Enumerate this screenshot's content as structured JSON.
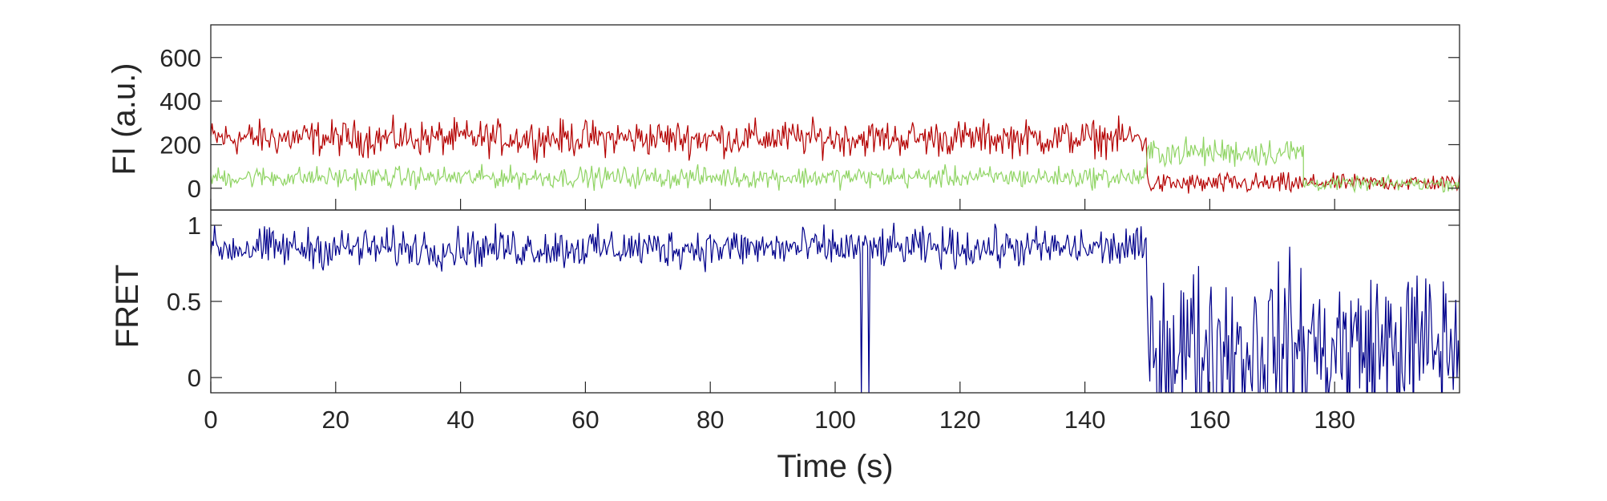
{
  "chart_data": [
    {
      "type": "line",
      "panel": "top",
      "ylabel": "FI (a.u.)",
      "xlabel": "",
      "xlim": [
        0,
        200
      ],
      "ylim": [
        -100,
        750
      ],
      "yticks": [
        0,
        200,
        400,
        600
      ],
      "ytick_labels": [
        "0",
        "200",
        "400",
        "600"
      ],
      "grid": false,
      "series": [
        {
          "color": "#b40000",
          "segments": [
            {
              "x": [
                0,
                150
              ],
              "mean": 230,
              "noise": 75
            },
            {
              "x": [
                150,
                175
              ],
              "mean": 20,
              "noise": 45
            },
            {
              "x": [
                175,
                200
              ],
              "mean": 25,
              "noise": 35
            }
          ]
        },
        {
          "color": "#8fd463",
          "segments": [
            {
              "x": [
                0,
                150
              ],
              "mean": 50,
              "noise": 45
            },
            {
              "x": [
                150,
                175
              ],
              "mean": 165,
              "noise": 60
            },
            {
              "x": [
                175,
                200
              ],
              "mean": 20,
              "noise": 30
            }
          ]
        }
      ]
    },
    {
      "type": "line",
      "panel": "bottom",
      "ylabel": "FRET",
      "xlabel": "Time (s)",
      "xlim": [
        0,
        200
      ],
      "ylim": [
        -0.1,
        1.1
      ],
      "yticks": [
        0,
        0.5,
        1
      ],
      "ytick_labels": [
        "0",
        "0.5",
        "1"
      ],
      "xticks": [
        0,
        20,
        40,
        60,
        80,
        100,
        120,
        140,
        160,
        180
      ],
      "xtick_labels": [
        "0",
        "20",
        "40",
        "60",
        "80",
        "100",
        "120",
        "140",
        "160",
        "180"
      ],
      "grid": false,
      "series": [
        {
          "color": "#00008b",
          "segments": [
            {
              "x": [
                0,
                150
              ],
              "mean": 0.85,
              "noise": 0.12
            },
            {
              "x": [
                150,
                200
              ],
              "mean": 0.2,
              "noise": 0.5
            }
          ],
          "dips": [
            {
              "x": 104.2,
              "y": -0.12
            },
            {
              "x": 105.4,
              "y": -0.12
            }
          ]
        }
      ]
    }
  ]
}
